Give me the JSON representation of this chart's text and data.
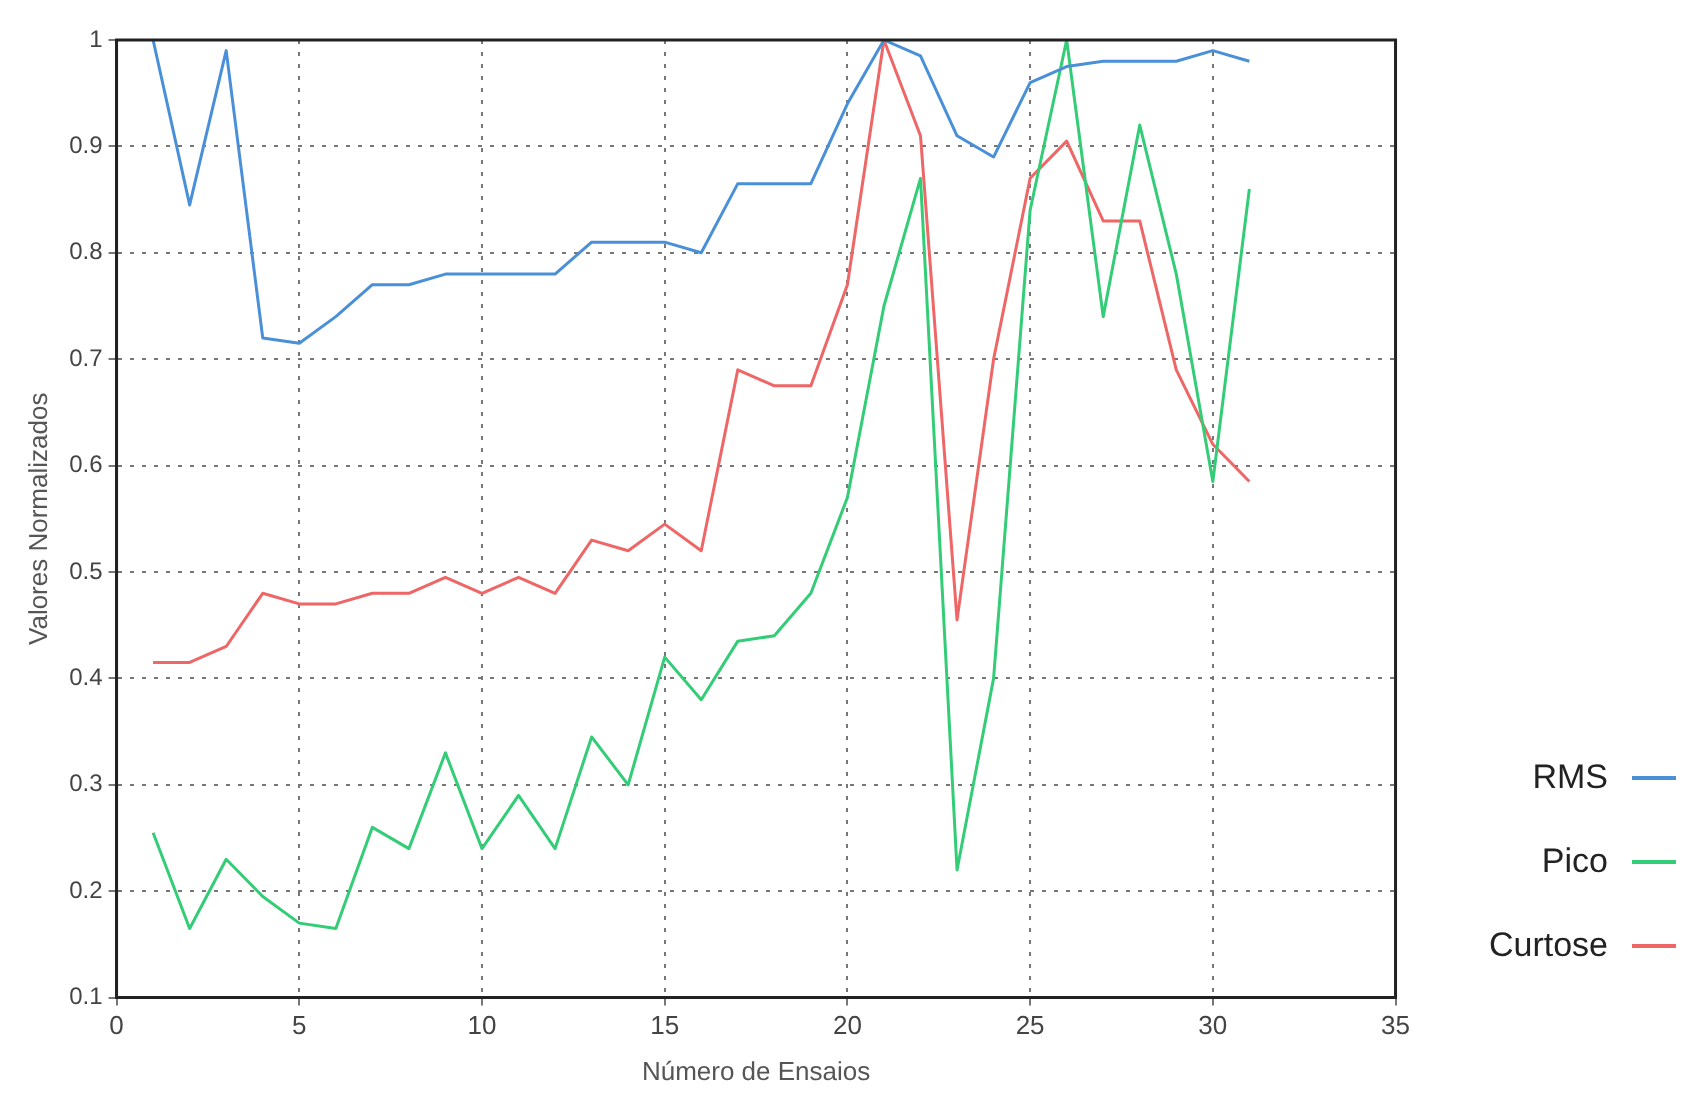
{
  "chart_data": {
    "type": "line",
    "xlabel": "Número de Ensaios",
    "ylabel": "Valores Normalizados",
    "x": [
      1,
      2,
      3,
      4,
      5,
      6,
      7,
      8,
      9,
      10,
      11,
      12,
      13,
      14,
      15,
      16,
      17,
      18,
      19,
      20,
      21,
      22,
      23,
      24,
      25,
      26,
      27,
      28,
      29,
      30,
      31
    ],
    "series": [
      {
        "name": "RMS",
        "color": "#4a90d9",
        "values": [
          1.0,
          0.845,
          0.99,
          0.72,
          0.715,
          0.74,
          0.77,
          0.77,
          0.78,
          0.78,
          0.78,
          0.78,
          0.81,
          0.81,
          0.81,
          0.8,
          0.865,
          0.865,
          0.865,
          0.94,
          1.0,
          0.985,
          0.91,
          0.89,
          0.96,
          0.975,
          0.98,
          0.98,
          0.98,
          0.99,
          0.98
        ]
      },
      {
        "name": "Pico",
        "color": "#33cc77",
        "values": [
          0.255,
          0.165,
          0.23,
          0.195,
          0.17,
          0.165,
          0.26,
          0.24,
          0.33,
          0.24,
          0.29,
          0.24,
          0.345,
          0.3,
          0.42,
          0.38,
          0.435,
          0.44,
          0.48,
          0.57,
          0.75,
          0.87,
          0.22,
          0.4,
          0.84,
          1.0,
          0.74,
          0.92,
          0.78,
          0.585,
          0.86
        ]
      },
      {
        "name": "Curtose",
        "color": "#ee6666",
        "values": [
          0.415,
          0.415,
          0.43,
          0.48,
          0.47,
          0.47,
          0.48,
          0.48,
          0.495,
          0.48,
          0.495,
          0.48,
          0.53,
          0.52,
          0.545,
          0.52,
          0.69,
          0.675,
          0.675,
          0.77,
          1.0,
          0.91,
          0.455,
          0.7,
          0.87,
          0.905,
          0.83,
          0.83,
          0.69,
          0.62,
          0.585
        ]
      }
    ],
    "xlim": [
      0,
      35
    ],
    "xticks": [
      0,
      5,
      10,
      15,
      20,
      25,
      30,
      35
    ],
    "ylim": [
      0.1,
      1
    ],
    "yticks": [
      0.1,
      0.2,
      0.3,
      0.4,
      0.5,
      0.6,
      0.7,
      0.8,
      0.9,
      1
    ],
    "grid": true,
    "legend": "right",
    "marker": "none",
    "line_style": "solid"
  }
}
